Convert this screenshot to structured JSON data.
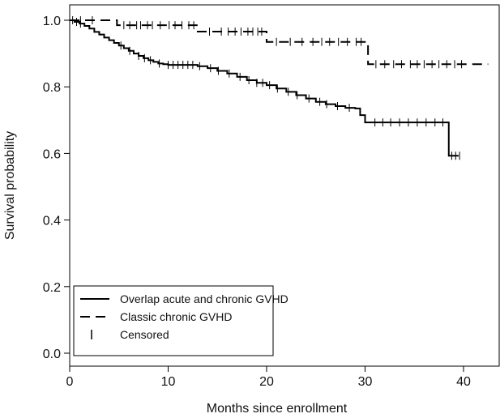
{
  "chart_data": {
    "type": "line",
    "chart_subtype": "kaplan-meier",
    "title": "",
    "xlabel": "Months since enrollment",
    "ylabel": "Survival probability",
    "xlim": [
      0,
      43
    ],
    "ylim": [
      0,
      1.02
    ],
    "x_ticks": [
      0,
      10,
      20,
      30,
      40
    ],
    "x_tick_labels": [
      "0",
      "10",
      "20",
      "30",
      "40"
    ],
    "y_ticks": [
      0.0,
      0.2,
      0.4,
      0.6,
      0.8,
      1.0
    ],
    "y_tick_labels": [
      "0.0",
      "0.2",
      "0.4",
      "0.6",
      "0.8",
      "1.0"
    ],
    "grid": false,
    "legend_position": "bottom-left",
    "series": [
      {
        "name": "Overlap acute and chronic GVHD",
        "style": "solid",
        "color": "#000000",
        "x": [
          0,
          0.5,
          1.0,
          1.5,
          2.0,
          2.5,
          3.0,
          3.5,
          4.0,
          4.5,
          5.0,
          5.5,
          6.0,
          6.5,
          7.0,
          7.5,
          8.0,
          8.5,
          9.0,
          9.5,
          10.0,
          13.0,
          14.0,
          15.0,
          16.0,
          17.0,
          18.0,
          19.0,
          20.0,
          21.0,
          22.0,
          23.0,
          24.0,
          25.0,
          26.0,
          27.0,
          28.0,
          29.0,
          29.5,
          30.0,
          38.5,
          39.5
        ],
        "y": [
          1.0,
          0.995,
          0.99,
          0.983,
          0.975,
          0.965,
          0.957,
          0.948,
          0.94,
          0.932,
          0.924,
          0.916,
          0.908,
          0.9,
          0.893,
          0.886,
          0.88,
          0.875,
          0.87,
          0.868,
          0.866,
          0.862,
          0.856,
          0.848,
          0.84,
          0.83,
          0.82,
          0.812,
          0.805,
          0.795,
          0.785,
          0.775,
          0.765,
          0.755,
          0.748,
          0.742,
          0.737,
          0.735,
          0.715,
          0.693,
          0.593,
          0.593
        ],
        "censored_x": [
          0.3,
          0.7,
          1.1,
          5.2,
          6.1,
          7.0,
          7.6,
          8.2,
          9.1,
          10.0,
          10.5,
          11.0,
          11.5,
          12.0,
          12.5,
          13.2,
          14.3,
          15.1,
          16.2,
          17.3,
          18.2,
          19.0,
          19.6,
          20.3,
          21.1,
          22.2,
          23.1,
          24.3,
          25.4,
          26.1,
          27.2,
          28.4,
          31.0,
          31.8,
          32.6,
          33.5,
          34.4,
          35.3,
          36.2,
          37.1,
          37.9,
          38.8,
          39.2,
          39.6
        ]
      },
      {
        "name": "Classic chronic GVHD",
        "style": "dashed",
        "color": "#000000",
        "x": [
          0,
          4.8,
          13.0,
          20.0,
          30.3,
          42.5
        ],
        "y": [
          1.0,
          0.985,
          0.966,
          0.935,
          0.868,
          0.868
        ],
        "censored_x": [
          1.1,
          2.3,
          5.5,
          6.1,
          6.8,
          7.2,
          7.9,
          8.4,
          9.2,
          10.1,
          10.7,
          11.4,
          12.1,
          12.6,
          14.2,
          15.4,
          16.1,
          16.8,
          17.4,
          18.1,
          18.6,
          19.1,
          19.5,
          21.0,
          22.4,
          23.6,
          24.7,
          25.6,
          26.4,
          27.3,
          28.2,
          29.1,
          29.6,
          31.1,
          32.0,
          32.9,
          33.7,
          34.6,
          35.3,
          36.0,
          36.8,
          37.5,
          38.3,
          39.1,
          39.8
        ]
      },
      {
        "name": "Censored",
        "style": "tick-mark",
        "color": "#000000"
      }
    ]
  }
}
